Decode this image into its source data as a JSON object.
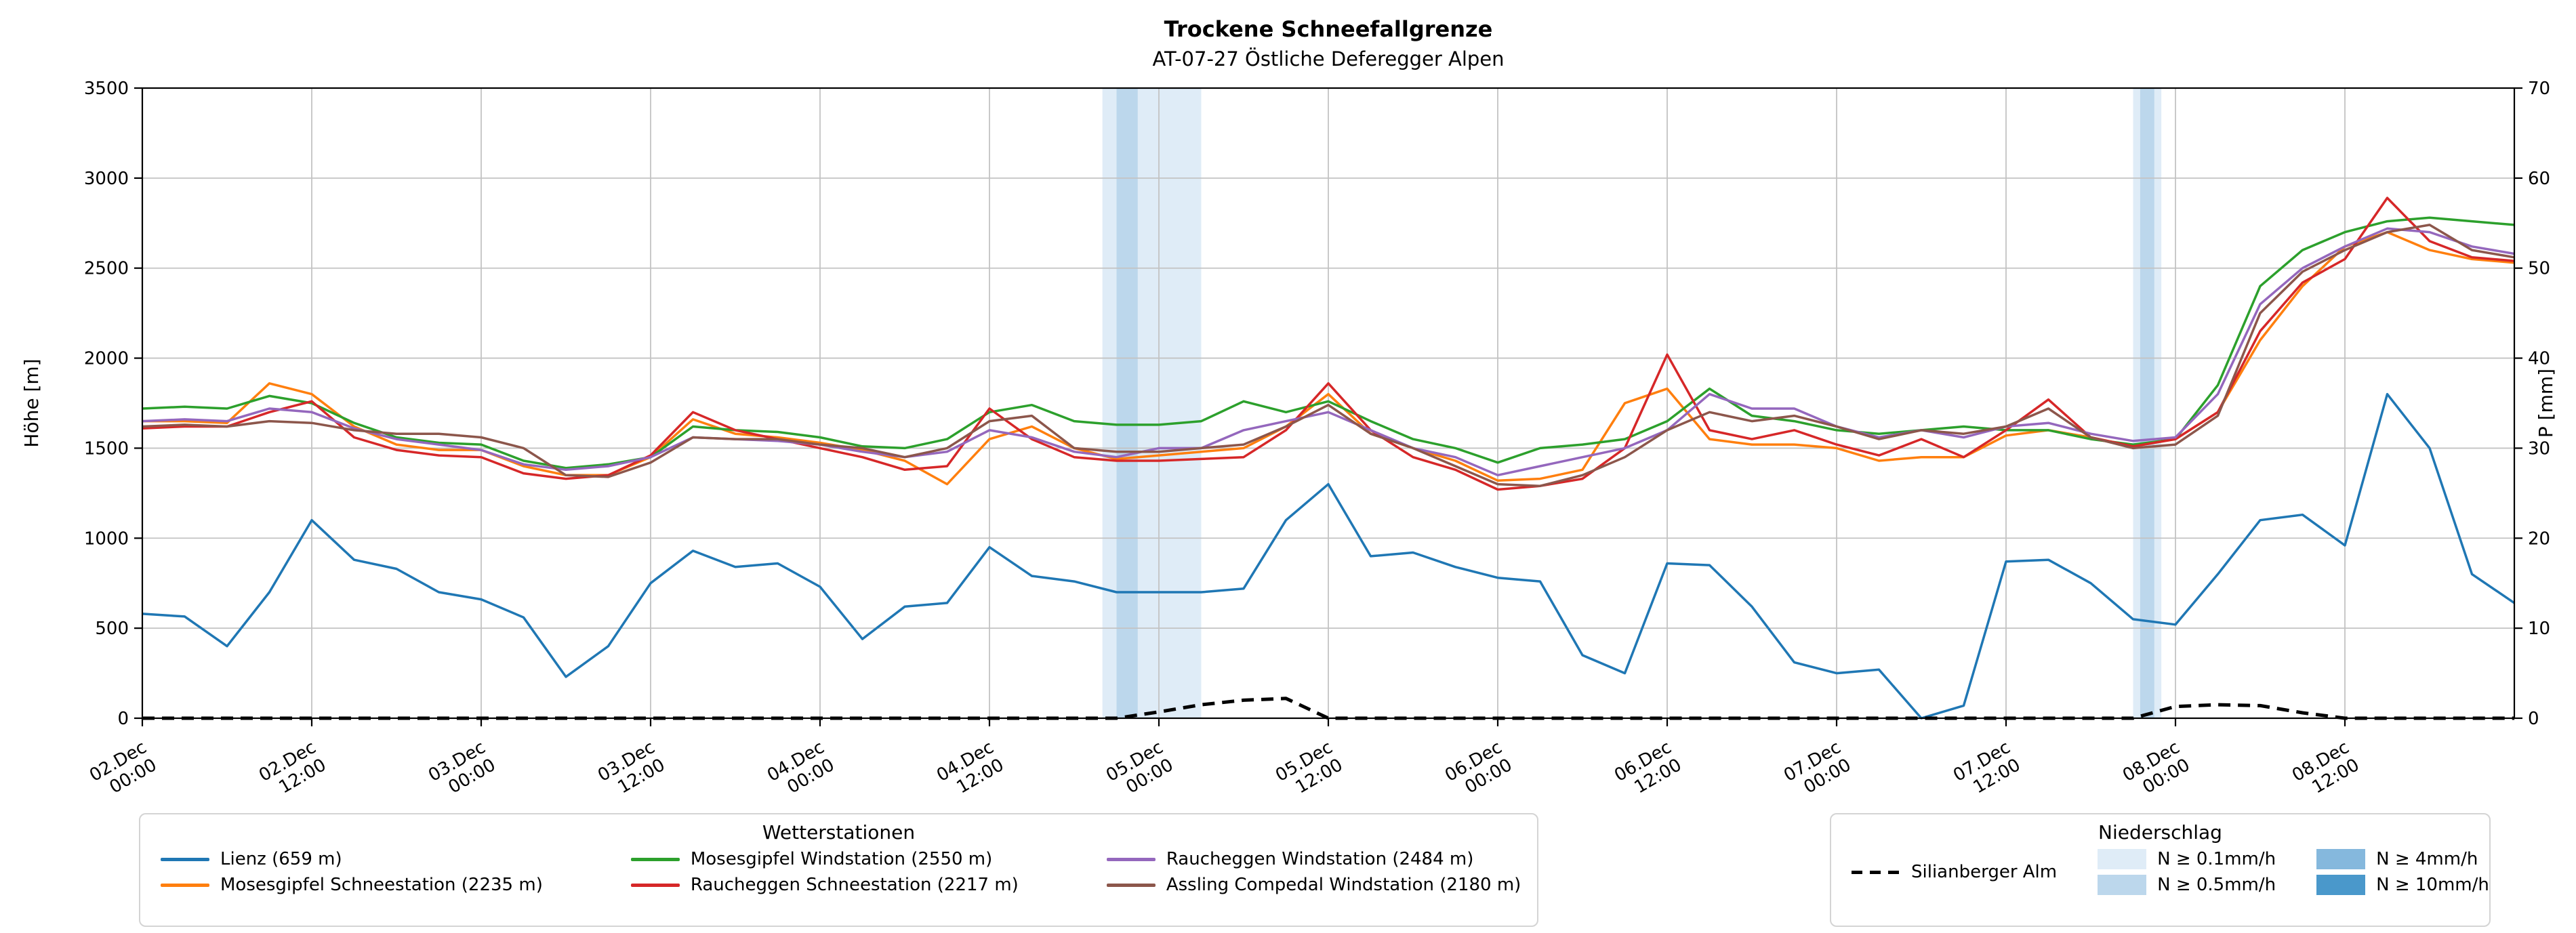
{
  "title": "Trockene Schneefallgrenze",
  "subtitle": "AT-07-27 Östliche Deferegger Alpen",
  "axes": {
    "y_left": {
      "label": "Höhe [m]",
      "min": 0,
      "max": 3500,
      "step": 500
    },
    "y_right": {
      "label": "P [mm]",
      "min": 0,
      "max": 70,
      "step": 10
    },
    "x": {
      "domain_hours": [
        0,
        168
      ],
      "ticks": [
        {
          "hour": 0,
          "line1": "02.Dec",
          "line2": "00:00"
        },
        {
          "hour": 12,
          "line1": "02.Dec",
          "line2": "12:00"
        },
        {
          "hour": 24,
          "line1": "03.Dec",
          "line2": "00:00"
        },
        {
          "hour": 36,
          "line1": "03.Dec",
          "line2": "12:00"
        },
        {
          "hour": 48,
          "line1": "04.Dec",
          "line2": "00:00"
        },
        {
          "hour": 60,
          "line1": "04.Dec",
          "line2": "12:00"
        },
        {
          "hour": 72,
          "line1": "05.Dec",
          "line2": "00:00"
        },
        {
          "hour": 84,
          "line1": "05.Dec",
          "line2": "12:00"
        },
        {
          "hour": 96,
          "line1": "06.Dec",
          "line2": "00:00"
        },
        {
          "hour": 108,
          "line1": "06.Dec",
          "line2": "12:00"
        },
        {
          "hour": 120,
          "line1": "07.Dec",
          "line2": "00:00"
        },
        {
          "hour": 132,
          "line1": "07.Dec",
          "line2": "12:00"
        },
        {
          "hour": 144,
          "line1": "08.Dec",
          "line2": "00:00"
        },
        {
          "hour": 156,
          "line1": "08.Dec",
          "line2": "12:00"
        }
      ]
    }
  },
  "chart_data": {
    "type": "line",
    "title": "Trockene Schneefallgrenze",
    "subtitle": "AT-07-27 Östliche Deferegger Alpen",
    "ylabel_left": "Höhe [m]",
    "ylabel_right": "P [mm]",
    "ylim_left": [
      0,
      3500
    ],
    "ylim_right": [
      0,
      70
    ],
    "grid": true,
    "x_hours": [
      0,
      3,
      6,
      9,
      12,
      15,
      18,
      21,
      24,
      27,
      30,
      33,
      36,
      39,
      42,
      45,
      48,
      51,
      54,
      57,
      60,
      63,
      66,
      69,
      72,
      75,
      78,
      81,
      84,
      87,
      90,
      93,
      96,
      99,
      102,
      105,
      108,
      111,
      114,
      117,
      120,
      123,
      126,
      129,
      132,
      135,
      138,
      141,
      144,
      147,
      150,
      153,
      156,
      159,
      162,
      165,
      168
    ],
    "series": [
      {
        "name": "Lienz (659 m)",
        "color": "#1f77b4",
        "axis": "left",
        "style": "solid",
        "values": [
          580,
          565,
          400,
          700,
          1100,
          880,
          830,
          700,
          660,
          560,
          230,
          400,
          750,
          930,
          840,
          860,
          730,
          440,
          620,
          640,
          950,
          790,
          760,
          700,
          700,
          700,
          720,
          1100,
          1300,
          900,
          920,
          840,
          780,
          760,
          350,
          250,
          860,
          850,
          620,
          310,
          250,
          270,
          0,
          70,
          870,
          880,
          750,
          550,
          520,
          800,
          1100,
          1130,
          960,
          1800,
          1500,
          800,
          640
        ]
      },
      {
        "name": "Mosesgipfel Schneestation (2235 m)",
        "color": "#ff7f0e",
        "axis": "left",
        "style": "solid",
        "values": [
          1650,
          1650,
          1640,
          1860,
          1800,
          1620,
          1520,
          1490,
          1490,
          1400,
          1350,
          1350,
          1450,
          1660,
          1580,
          1560,
          1530,
          1490,
          1430,
          1300,
          1550,
          1620,
          1500,
          1440,
          1460,
          1480,
          1500,
          1620,
          1800,
          1580,
          1500,
          1430,
          1320,
          1330,
          1380,
          1750,
          1830,
          1550,
          1520,
          1520,
          1500,
          1430,
          1450,
          1450,
          1570,
          1600,
          1560,
          1510,
          1550,
          1700,
          2100,
          2400,
          2620,
          2700,
          2600,
          2550,
          2530
        ]
      },
      {
        "name": "Mosesgipfel Windstation (2550 m)",
        "color": "#2ca02c",
        "axis": "left",
        "style": "solid",
        "values": [
          1720,
          1730,
          1720,
          1790,
          1750,
          1640,
          1560,
          1530,
          1520,
          1430,
          1390,
          1410,
          1450,
          1620,
          1600,
          1590,
          1560,
          1510,
          1500,
          1550,
          1700,
          1740,
          1650,
          1630,
          1630,
          1650,
          1760,
          1700,
          1760,
          1650,
          1550,
          1500,
          1420,
          1500,
          1520,
          1550,
          1650,
          1830,
          1680,
          1650,
          1600,
          1580,
          1600,
          1620,
          1600,
          1600,
          1550,
          1520,
          1550,
          1850,
          2400,
          2600,
          2700,
          2760,
          2780,
          2760,
          2740
        ]
      },
      {
        "name": "Raucheggen Schneestation (2217 m)",
        "color": "#d62728",
        "axis": "left",
        "style": "solid",
        "values": [
          1610,
          1620,
          1620,
          1700,
          1760,
          1560,
          1490,
          1460,
          1450,
          1360,
          1330,
          1350,
          1460,
          1700,
          1600,
          1550,
          1500,
          1450,
          1380,
          1400,
          1720,
          1550,
          1450,
          1430,
          1430,
          1440,
          1450,
          1600,
          1860,
          1600,
          1450,
          1380,
          1270,
          1290,
          1330,
          1500,
          2020,
          1600,
          1550,
          1600,
          1520,
          1460,
          1550,
          1450,
          1600,
          1770,
          1560,
          1510,
          1550,
          1700,
          2150,
          2420,
          2550,
          2890,
          2650,
          2560,
          2540
        ]
      },
      {
        "name": "Raucheggen Windstation (2484 m)",
        "color": "#9467bd",
        "axis": "left",
        "style": "solid",
        "values": [
          1650,
          1660,
          1650,
          1720,
          1700,
          1610,
          1550,
          1520,
          1490,
          1410,
          1380,
          1400,
          1450,
          1560,
          1550,
          1540,
          1520,
          1480,
          1450,
          1480,
          1600,
          1560,
          1480,
          1450,
          1500,
          1500,
          1600,
          1650,
          1700,
          1600,
          1500,
          1450,
          1350,
          1400,
          1450,
          1500,
          1600,
          1800,
          1720,
          1720,
          1620,
          1560,
          1600,
          1560,
          1620,
          1640,
          1580,
          1540,
          1560,
          1800,
          2300,
          2500,
          2620,
          2720,
          2700,
          2620,
          2580
        ]
      },
      {
        "name": "Assling Compedal Windstation (2180 m)",
        "color": "#8c564b",
        "axis": "left",
        "style": "solid",
        "values": [
          1620,
          1630,
          1620,
          1650,
          1640,
          1600,
          1580,
          1580,
          1560,
          1500,
          1350,
          1340,
          1420,
          1560,
          1550,
          1550,
          1520,
          1500,
          1450,
          1500,
          1650,
          1680,
          1500,
          1480,
          1480,
          1500,
          1520,
          1620,
          1740,
          1580,
          1500,
          1400,
          1300,
          1290,
          1350,
          1450,
          1600,
          1700,
          1650,
          1680,
          1620,
          1550,
          1600,
          1580,
          1620,
          1720,
          1560,
          1500,
          1520,
          1680,
          2250,
          2480,
          2600,
          2700,
          2740,
          2600,
          2560
        ]
      },
      {
        "name": "Silianberger Alm",
        "color": "#000000",
        "axis": "right",
        "style": "dashed",
        "values": [
          0,
          0,
          0,
          0,
          0,
          0,
          0,
          0,
          0,
          0,
          0,
          0,
          0,
          0,
          0,
          0,
          0,
          0,
          0,
          0,
          0,
          0,
          0,
          0,
          0.7,
          1.5,
          2.0,
          2.2,
          0,
          0,
          0,
          0,
          0,
          0,
          0,
          0,
          0,
          0,
          0,
          0,
          0,
          0,
          0,
          0,
          0,
          0,
          0,
          0,
          1.3,
          1.5,
          1.4,
          0.6,
          0,
          0,
          0,
          0,
          0
        ]
      }
    ],
    "precip_bands": [
      {
        "start_hour": 68,
        "end_hour": 75,
        "level": "0.1"
      },
      {
        "start_hour": 69,
        "end_hour": 70.5,
        "level": "0.5"
      },
      {
        "start_hour": 141,
        "end_hour": 143,
        "level": "0.1"
      },
      {
        "start_hour": 141.5,
        "end_hour": 142.5,
        "level": "0.5"
      }
    ],
    "band_colors": {
      "0.1": "#dfecf7",
      "0.5": "#bcd7ec",
      "4": "#85b8dd",
      "10": "#4a98cb"
    }
  },
  "legend_stations": {
    "title": "Wetterstationen",
    "items": [
      {
        "label": "Lienz (659 m)",
        "color": "#1f77b4"
      },
      {
        "label": "Mosesgipfel Schneestation (2235 m)",
        "color": "#ff7f0e"
      },
      {
        "label": "Mosesgipfel Windstation (2550 m)",
        "color": "#2ca02c"
      },
      {
        "label": "Raucheggen Schneestation (2217 m)",
        "color": "#d62728"
      },
      {
        "label": "Raucheggen Windstation (2484 m)",
        "color": "#9467bd"
      },
      {
        "label": "Assling Compedal Windstation (2180 m)",
        "color": "#8c564b"
      }
    ]
  },
  "legend_precip": {
    "title": "Niederschlag",
    "line_item": {
      "label": "Silianberger Alm",
      "color": "#000000",
      "style": "dashed"
    },
    "patch_items": [
      {
        "label": "N ≥ 0.1mm/h",
        "color": "#dfecf7"
      },
      {
        "label": "N ≥ 0.5mm/h",
        "color": "#bcd7ec"
      },
      {
        "label": "N ≥ 4mm/h",
        "color": "#85b8dd"
      },
      {
        "label": "N ≥ 10mm/h",
        "color": "#4a98cb"
      }
    ]
  }
}
